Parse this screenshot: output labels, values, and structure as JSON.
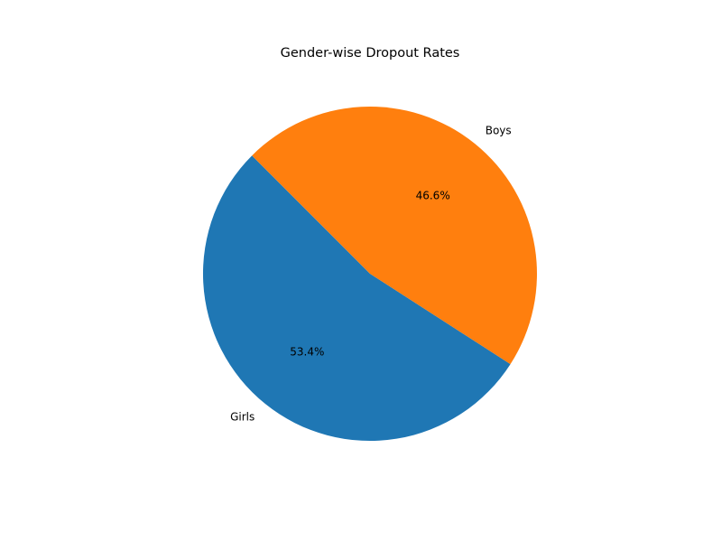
{
  "chart_data": {
    "type": "pie",
    "title": "Gender-wise Dropout Rates",
    "slices": [
      {
        "label": "Girls",
        "value": 53.4,
        "pct_label": "53.4%",
        "color": "#1f77b4"
      },
      {
        "label": "Boys",
        "value": 46.6,
        "pct_label": "46.6%",
        "color": "#ff7f0e"
      }
    ],
    "start_angle_deg": 135,
    "direction": "counterclockwise"
  }
}
